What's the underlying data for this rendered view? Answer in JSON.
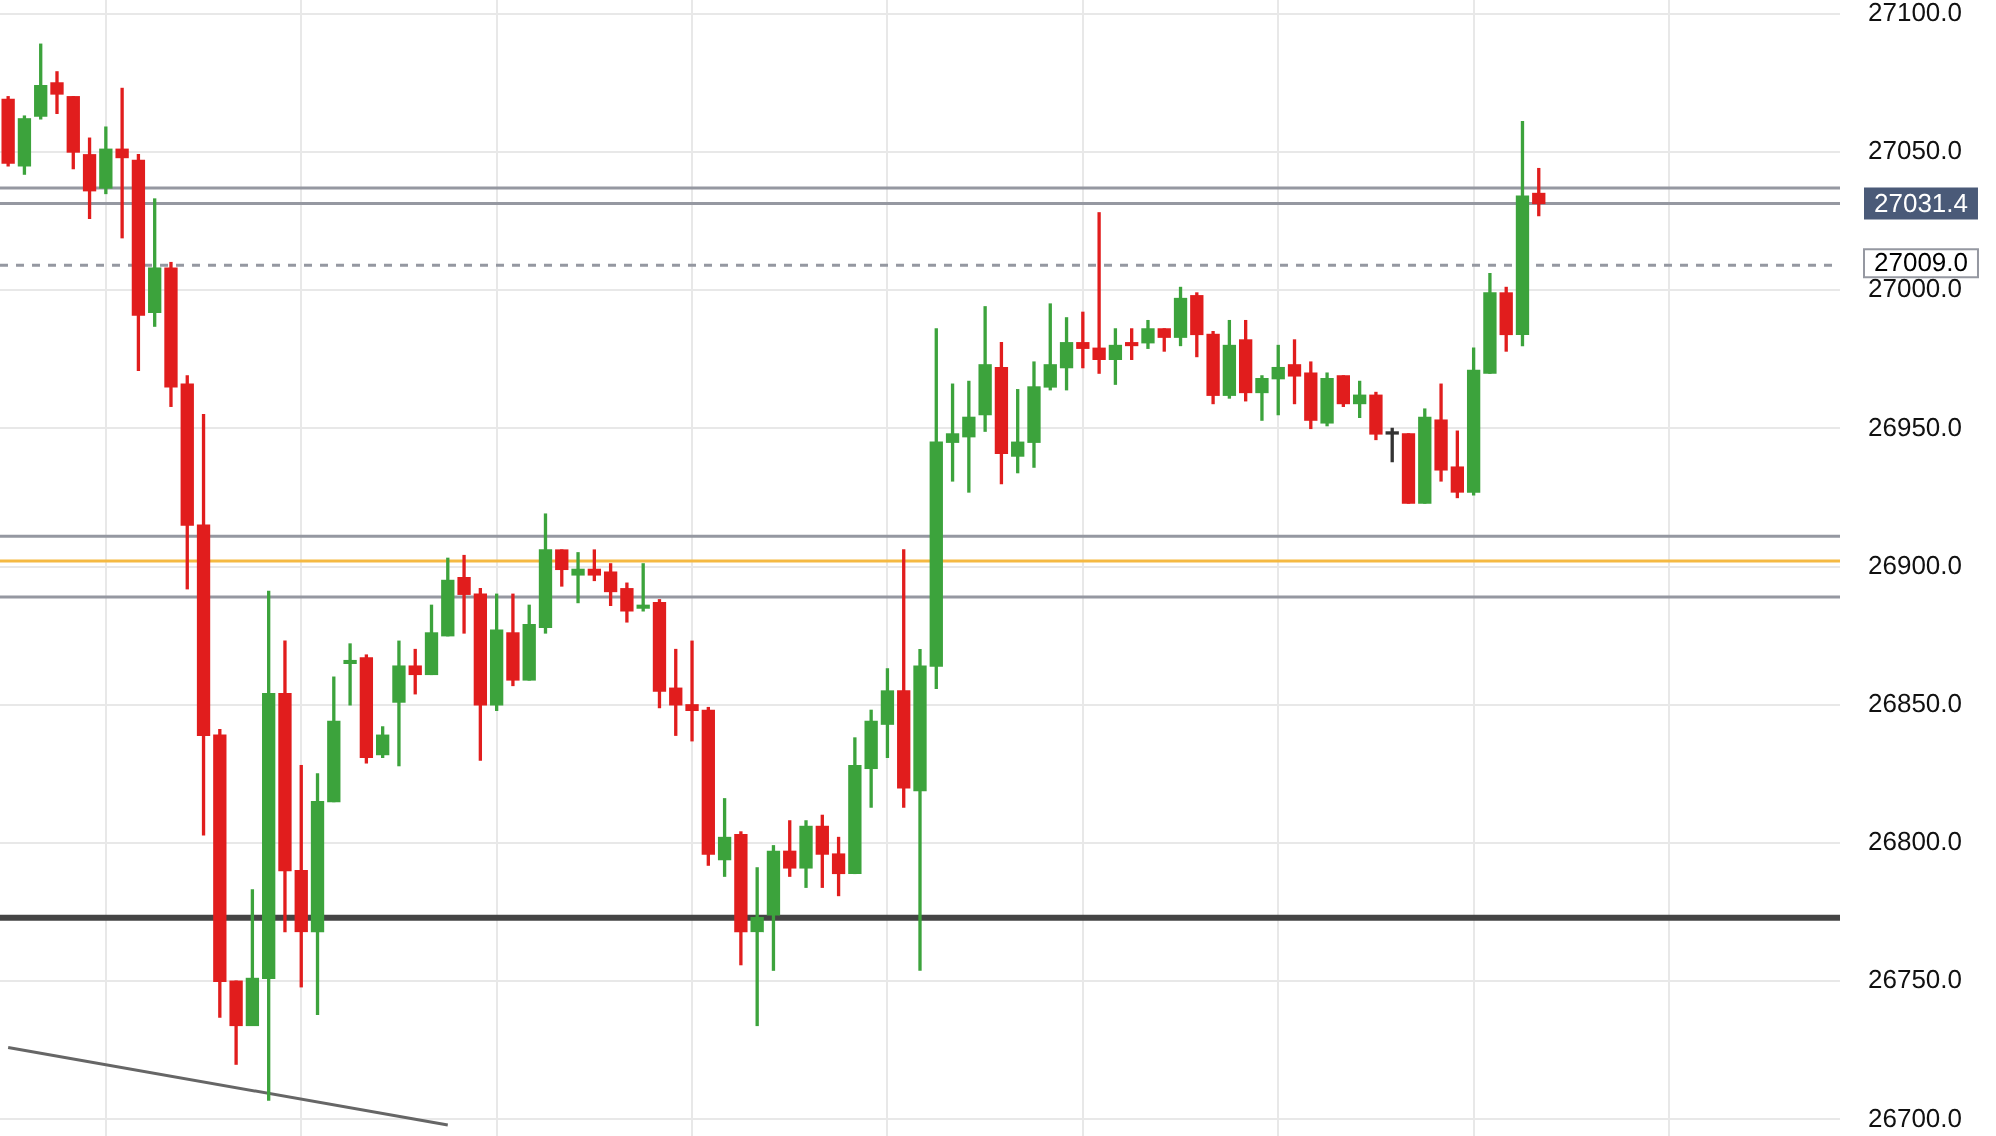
{
  "chart_data": {
    "type": "candlestick",
    "categories": [
      null,
      null,
      null,
      null,
      null,
      null,
      null,
      null,
      null,
      null,
      null,
      null,
      null,
      null,
      null,
      null,
      null,
      null,
      null,
      null,
      null,
      null,
      null,
      null,
      null,
      null,
      null,
      null,
      null,
      null,
      null,
      null,
      null,
      null,
      null,
      null,
      null,
      null,
      null,
      null,
      null,
      null,
      null,
      null,
      null,
      null,
      null,
      null,
      null,
      null,
      null,
      null,
      null,
      null,
      null,
      null,
      null,
      null,
      null,
      null,
      null,
      null,
      null,
      null,
      null,
      null,
      null,
      null,
      null,
      null,
      null,
      null,
      null,
      null,
      null,
      null,
      null,
      null,
      null,
      null,
      null,
      null,
      null,
      null,
      null,
      null,
      null,
      null,
      null,
      null,
      null,
      null,
      null,
      null,
      null,
      null,
      null,
      null,
      null,
      null,
      null,
      null,
      null,
      null,
      null,
      null,
      null,
      null,
      null,
      null,
      null,
      null,
      null
    ],
    "ohlc": [
      [
        27069,
        27070,
        27045,
        27046
      ],
      [
        27045,
        27063,
        27042,
        27062
      ],
      [
        27063,
        27089,
        27062,
        27074
      ],
      [
        27075,
        27079,
        27064,
        27071
      ],
      [
        27070,
        27070,
        27044,
        27050
      ],
      [
        27049,
        27055,
        27026,
        27036
      ],
      [
        27037,
        27059,
        27035,
        27051
      ],
      [
        27051,
        27073,
        27019,
        27048
      ],
      [
        27047,
        27049,
        26971,
        26991
      ],
      [
        26992,
        27033,
        26987,
        27008
      ],
      [
        27008,
        27010,
        26958,
        26965
      ],
      [
        26966,
        26969,
        26892,
        26915
      ],
      [
        26915,
        26955,
        26803,
        26839
      ],
      [
        26839,
        26841,
        26737,
        26750
      ],
      [
        26750,
        26750,
        26720,
        26734
      ],
      [
        26734,
        26783,
        26734,
        26751
      ],
      [
        26751,
        26891,
        26707,
        26854
      ],
      [
        26854,
        26873,
        26768,
        26790
      ],
      [
        26790,
        26828,
        26748,
        26768
      ],
      [
        26768,
        26825,
        26738,
        26815
      ],
      [
        26815,
        26860,
        26815,
        26844
      ],
      [
        26865,
        26872,
        26850,
        26866
      ],
      [
        26867,
        26868,
        26829,
        26831
      ],
      [
        26832,
        26842,
        26831,
        26839
      ],
      [
        26851,
        26873,
        26828,
        26864
      ],
      [
        26864,
        26870,
        26854,
        26861
      ],
      [
        26861,
        26886,
        26861,
        26876
      ],
      [
        26875,
        26903,
        26875,
        26895
      ],
      [
        26896,
        26904,
        26876,
        26890
      ],
      [
        26890,
        26892,
        26830,
        26850
      ],
      [
        26850,
        26890,
        26848,
        26877
      ],
      [
        26876,
        26890,
        26857,
        26859
      ],
      [
        26859,
        26886,
        26859,
        26879
      ],
      [
        26878,
        26919,
        26876,
        26906
      ],
      [
        26906,
        26906,
        26893,
        26899
      ],
      [
        26897,
        26905,
        26887,
        26899
      ],
      [
        26899,
        26906,
        26895,
        26897
      ],
      [
        26898,
        26901,
        26886,
        26891
      ],
      [
        26892,
        26894,
        26880,
        26884
      ],
      [
        26885,
        26901,
        26884,
        26886
      ],
      [
        26887,
        26888,
        26849,
        26855
      ],
      [
        26856,
        26870,
        26839,
        26850
      ],
      [
        26850,
        26873,
        26837,
        26848
      ],
      [
        26848,
        26849,
        26792,
        26796
      ],
      [
        26794,
        26816,
        26788,
        26802
      ],
      [
        26803,
        26804,
        26756,
        26768
      ],
      [
        26768,
        26791,
        26734,
        26773
      ],
      [
        26774,
        26799,
        26754,
        26797
      ],
      [
        26797,
        26808,
        26788,
        26791
      ],
      [
        26791,
        26808,
        26784,
        26806
      ],
      [
        26806,
        26810,
        26784,
        26796
      ],
      [
        26796,
        26802,
        26781,
        26789
      ],
      [
        26789,
        26838,
        26789,
        26828
      ],
      [
        26827,
        26848,
        26813,
        26844
      ],
      [
        26843,
        26863,
        26831,
        26855
      ],
      [
        26855,
        26906,
        26813,
        26820
      ],
      [
        26819,
        26870,
        26754,
        26864
      ],
      [
        26864,
        26986,
        26856,
        26945
      ],
      [
        26945,
        26966,
        26931,
        26948
      ],
      [
        26947,
        26967,
        26927,
        26954
      ],
      [
        26955,
        26994,
        26949,
        26973
      ],
      [
        26972,
        26981,
        26930,
        26941
      ],
      [
        26940,
        26964,
        26934,
        26945
      ],
      [
        26945,
        26974,
        26936,
        26965
      ],
      [
        26965,
        26995,
        26964,
        26973
      ],
      [
        26972,
        26990,
        26964,
        26981
      ],
      [
        26981,
        26992,
        26972,
        26979
      ],
      [
        26979,
        27028,
        26970,
        26975
      ],
      [
        26975,
        26986,
        26966,
        26980
      ],
      [
        26981,
        26986,
        26975,
        26980
      ],
      [
        26981,
        26989,
        26979,
        26986
      ],
      [
        26986,
        26986,
        26978,
        26983
      ],
      [
        26983,
        27001,
        26980,
        26997
      ],
      [
        26998,
        26999,
        26976,
        26984
      ],
      [
        26984,
        26985,
        26959,
        26962
      ],
      [
        26962,
        26989,
        26961,
        26980
      ],
      [
        26982,
        26989,
        26960,
        26963
      ],
      [
        26963,
        26969,
        26953,
        26968
      ],
      [
        26968,
        26980,
        26955,
        26972
      ],
      [
        26973,
        26982,
        26959,
        26969
      ],
      [
        26970,
        26974,
        26950,
        26953
      ],
      [
        26952,
        26970,
        26951,
        26968
      ],
      [
        26969,
        26969,
        26958,
        26959
      ],
      [
        26959,
        26967,
        26954,
        26962
      ],
      [
        26962,
        26963,
        26946,
        26948
      ],
      [
        26948,
        26950,
        26938,
        26948
      ],
      [
        26948,
        26948,
        26923,
        26923
      ],
      [
        26923,
        26957,
        26923,
        26954
      ],
      [
        26953,
        26966,
        26931,
        26935
      ],
      [
        26936,
        26949,
        26925,
        26927
      ],
      [
        26927,
        26979,
        26926,
        26971
      ],
      [
        26970,
        27006,
        26970,
        26999
      ],
      [
        26999,
        27001,
        26978,
        26984
      ],
      [
        26984,
        27061,
        26980,
        27034
      ],
      [
        27035,
        27044,
        27027,
        27031.4
      ],
      null,
      null,
      null,
      null,
      null,
      null,
      null,
      null,
      null,
      null,
      null,
      null,
      null,
      null,
      null,
      null,
      null,
      null
    ],
    "colors": [
      "#e11d1d",
      "#3ca33c",
      "#3ca33c",
      "#e11d1d",
      "#e11d1d",
      "#e11d1d",
      "#3ca33c",
      "#e11d1d",
      "#e11d1d",
      "#3ca33c",
      "#e11d1d",
      "#e11d1d",
      "#e11d1d",
      "#e11d1d",
      "#e11d1d",
      "#3ca33c",
      "#3ca33c",
      "#e11d1d",
      "#e11d1d",
      "#3ca33c",
      "#3ca33c",
      "#3ca33c",
      "#e11d1d",
      "#3ca33c",
      "#3ca33c",
      "#e11d1d",
      "#3ca33c",
      "#3ca33c",
      "#e11d1d",
      "#e11d1d",
      "#3ca33c",
      "#e11d1d",
      "#3ca33c",
      "#3ca33c",
      "#e11d1d",
      "#3ca33c",
      "#e11d1d",
      "#e11d1d",
      "#e11d1d",
      "#3ca33c",
      "#e11d1d",
      "#e11d1d",
      "#e11d1d",
      "#e11d1d",
      "#3ca33c",
      "#e11d1d",
      "#3ca33c",
      "#3ca33c",
      "#e11d1d",
      "#3ca33c",
      "#e11d1d",
      "#e11d1d",
      "#3ca33c",
      "#3ca33c",
      "#3ca33c",
      "#e11d1d",
      "#3ca33c",
      "#3ca33c",
      "#3ca33c",
      "#3ca33c",
      "#3ca33c",
      "#e11d1d",
      "#3ca33c",
      "#3ca33c",
      "#3ca33c",
      "#3ca33c",
      "#e11d1d",
      "#e11d1d",
      "#3ca33c",
      "#e11d1d",
      "#3ca33c",
      "#e11d1d",
      "#3ca33c",
      "#e11d1d",
      "#e11d1d",
      "#3ca33c",
      "#e11d1d",
      "#3ca33c",
      "#3ca33c",
      "#e11d1d",
      "#e11d1d",
      "#3ca33c",
      "#e11d1d",
      "#3ca33c",
      "#e11d1d",
      "#333333",
      "#e11d1d",
      "#3ca33c",
      "#e11d1d",
      "#e11d1d",
      "#3ca33c",
      "#3ca33c",
      "#e11d1d",
      "#3ca33c",
      "#e11d1d",
      null,
      null,
      null,
      null,
      null,
      null,
      null,
      null,
      null,
      null,
      null,
      null,
      null,
      null,
      null,
      null,
      null,
      null
    ],
    "series": [
      {
        "type": "line",
        "values": [
          26726,
          null,
          null,
          null,
          null,
          null,
          null,
          null,
          null,
          null,
          null,
          null,
          null,
          null,
          null,
          null,
          null,
          null,
          null,
          null,
          null,
          null,
          null,
          null,
          null,
          null,
          null,
          26698,
          null,
          null,
          null,
          null,
          null,
          null,
          null,
          null,
          null,
          null,
          null,
          null,
          null,
          null,
          null,
          null,
          null,
          null,
          null,
          null,
          null,
          null,
          null,
          null,
          null,
          null,
          null,
          null,
          null,
          null,
          null,
          null,
          null,
          null,
          null,
          null,
          null,
          null,
          null,
          null,
          null,
          null,
          null,
          null,
          null,
          null,
          null,
          null,
          null,
          null,
          null,
          null,
          null,
          null,
          null,
          null,
          null,
          null,
          null,
          null,
          null,
          null,
          null,
          null,
          null,
          null,
          null,
          null,
          null,
          null,
          null,
          null,
          null,
          null,
          null,
          null,
          null,
          null,
          null,
          null,
          null,
          null,
          null,
          null,
          null
        ],
        "color": "#666666"
      }
    ],
    "ref_lines": [
      {
        "axis": "y",
        "value": 27037,
        "color": "#9598a1"
      },
      {
        "axis": "y",
        "value": 27031.4,
        "label": "27031.4",
        "color": "#9598a1"
      },
      {
        "axis": "y",
        "value": 27009,
        "label": "27009.0",
        "color": "#9598a1",
        "line_style": "dashed"
      },
      {
        "axis": "y",
        "value": 26911,
        "color": "#9598a1"
      },
      {
        "axis": "y",
        "value": 26902,
        "color": "#f5b942"
      },
      {
        "axis": "y",
        "value": 26889,
        "color": "#9598a1"
      },
      {
        "axis": "y",
        "value": 26773,
        "color": "#444444"
      }
    ],
    "ylim": [
      26694,
      27105
    ],
    "yticks": [
      {
        "value": 26700,
        "label": "26700.0"
      },
      {
        "value": 26750,
        "label": "26750.0"
      },
      {
        "value": 26800,
        "label": "26800.0"
      },
      {
        "value": 26850,
        "label": "26850.0"
      },
      {
        "value": 26900,
        "label": "26900.0"
      },
      {
        "value": 26950,
        "label": "26950.0"
      },
      {
        "value": 27000,
        "label": "27000.0"
      },
      {
        "value": 27050,
        "label": "27050.0"
      },
      {
        "value": 27100,
        "label": "27100.0"
      }
    ],
    "tick_labels": "y",
    "grid": true
  }
}
